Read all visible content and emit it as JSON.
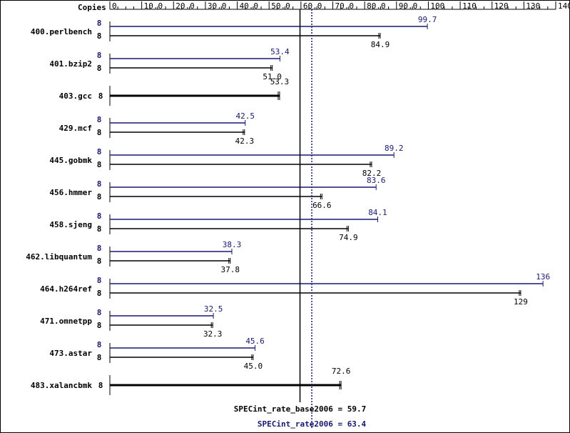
{
  "chart_data": {
    "type": "bar",
    "orientation": "horizontal",
    "header": "Copies",
    "x_ticks": [
      0,
      10,
      20,
      30,
      40,
      50,
      60,
      70,
      80,
      90,
      100,
      110,
      120,
      130,
      140
    ],
    "x_tick_labels": [
      "0",
      "10.0",
      "20.0",
      "30.0",
      "40.0",
      "50.0",
      "60.0",
      "70.0",
      "80.0",
      "90.0",
      "100",
      "110",
      "120",
      "130",
      "140"
    ],
    "xlim": [
      0,
      140
    ],
    "colors": {
      "peak": "#191970",
      "base": "#000000"
    },
    "benchmarks": [
      {
        "name": "400.perlbench",
        "peak_copies": "8",
        "peak": 99.7,
        "peak_label": "99.7",
        "base_copies": "8",
        "base": 84.9,
        "base_label": "84.9"
      },
      {
        "name": "401.bzip2",
        "peak_copies": "8",
        "peak": 53.4,
        "peak_label": "53.4",
        "base_copies": "8",
        "base": 51.0,
        "base_label": "51.0"
      },
      {
        "name": "403.gcc",
        "copies": "8",
        "combined": 53.3,
        "combined_label": "53.3"
      },
      {
        "name": "429.mcf",
        "peak_copies": "8",
        "peak": 42.5,
        "peak_label": "42.5",
        "base_copies": "8",
        "base": 42.3,
        "base_label": "42.3"
      },
      {
        "name": "445.gobmk",
        "peak_copies": "8",
        "peak": 89.2,
        "peak_label": "89.2",
        "base_copies": "8",
        "base": 82.2,
        "base_label": "82.2"
      },
      {
        "name": "456.hmmer",
        "peak_copies": "8",
        "peak": 83.6,
        "peak_label": "83.6",
        "base_copies": "8",
        "base": 66.6,
        "base_label": "66.6"
      },
      {
        "name": "458.sjeng",
        "peak_copies": "8",
        "peak": 84.1,
        "peak_label": "84.1",
        "base_copies": "8",
        "base": 74.9,
        "base_label": "74.9"
      },
      {
        "name": "462.libquantum",
        "peak_copies": "8",
        "peak": 38.3,
        "peak_label": "38.3",
        "base_copies": "8",
        "base": 37.8,
        "base_label": "37.8"
      },
      {
        "name": "464.h264ref",
        "peak_copies": "8",
        "peak": 136,
        "peak_label": "136",
        "base_copies": "8",
        "base": 129,
        "base_label": "129"
      },
      {
        "name": "471.omnetpp",
        "peak_copies": "8",
        "peak": 32.5,
        "peak_label": "32.5",
        "base_copies": "8",
        "base": 32.3,
        "base_label": "32.3"
      },
      {
        "name": "473.astar",
        "peak_copies": "8",
        "peak": 45.6,
        "peak_label": "45.6",
        "base_copies": "8",
        "base": 45.0,
        "base_label": "45.0"
      },
      {
        "name": "483.xalancbmk",
        "copies": "8",
        "combined": 72.6,
        "combined_label": "72.6"
      }
    ],
    "summary": {
      "base_label": "SPECint_rate_base2006 = 59.7",
      "base_value": 59.7,
      "peak_label": "SPECint_rate2006 = 63.4",
      "peak_value": 63.4
    }
  }
}
